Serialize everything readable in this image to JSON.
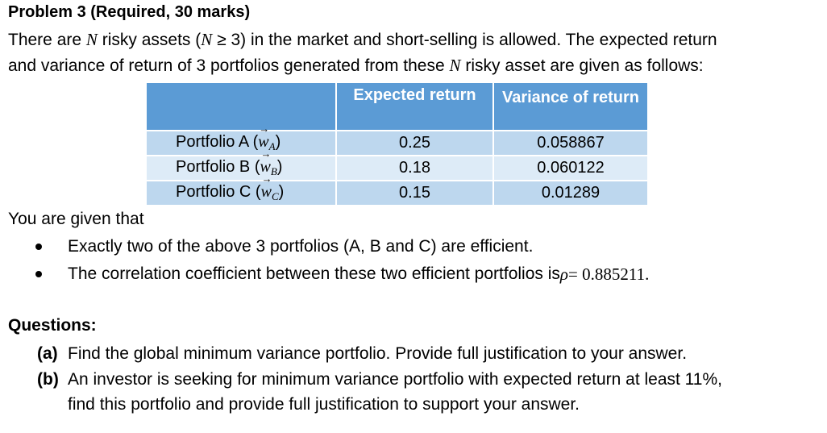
{
  "title": "Problem 3 (Required, 30 marks)",
  "intro": {
    "line1_a": "There are ",
    "N": "N",
    "line1_b": " risky assets (",
    "line1_c": " ≥ 3) in the market and short-selling is allowed. The expected return",
    "line2_a": "and variance of return of 3 portfolios generated from these ",
    "line2_b": " risky asset are given as follows:"
  },
  "table": {
    "headers": [
      "",
      "Expected return",
      "Variance of return"
    ],
    "rows": [
      {
        "label": "Portfolio A (",
        "vec": "w",
        "sub": "A",
        "close": ")",
        "expected": "0.25",
        "variance": "0.058867"
      },
      {
        "label": "Portfolio B (",
        "vec": "w",
        "sub": "B",
        "close": ")",
        "expected": "0.18",
        "variance": "0.060122"
      },
      {
        "label": "Portfolio C (",
        "vec": "w",
        "sub": "C",
        "close": ")",
        "expected": "0.15",
        "variance": "0.01289"
      }
    ]
  },
  "given": "You are given that",
  "bullets": [
    {
      "text": "Exactly two of the above 3 portfolios (A, B and C) are efficient."
    },
    {
      "text": "The correlation coefficient between these two efficient portfolios is ",
      "rho": "ρ",
      "eq": " = 0.885211."
    }
  ],
  "questions": {
    "title": "Questions:",
    "a": {
      "label": "(a)",
      "text": "Find the global minimum variance portfolio. Provide full justification to your answer."
    },
    "b": {
      "label": "(b)",
      "text": "An investor is seeking for minimum variance portfolio with expected return at least 11%,",
      "cont": "find this portfolio and provide full justification to support your answer."
    }
  }
}
